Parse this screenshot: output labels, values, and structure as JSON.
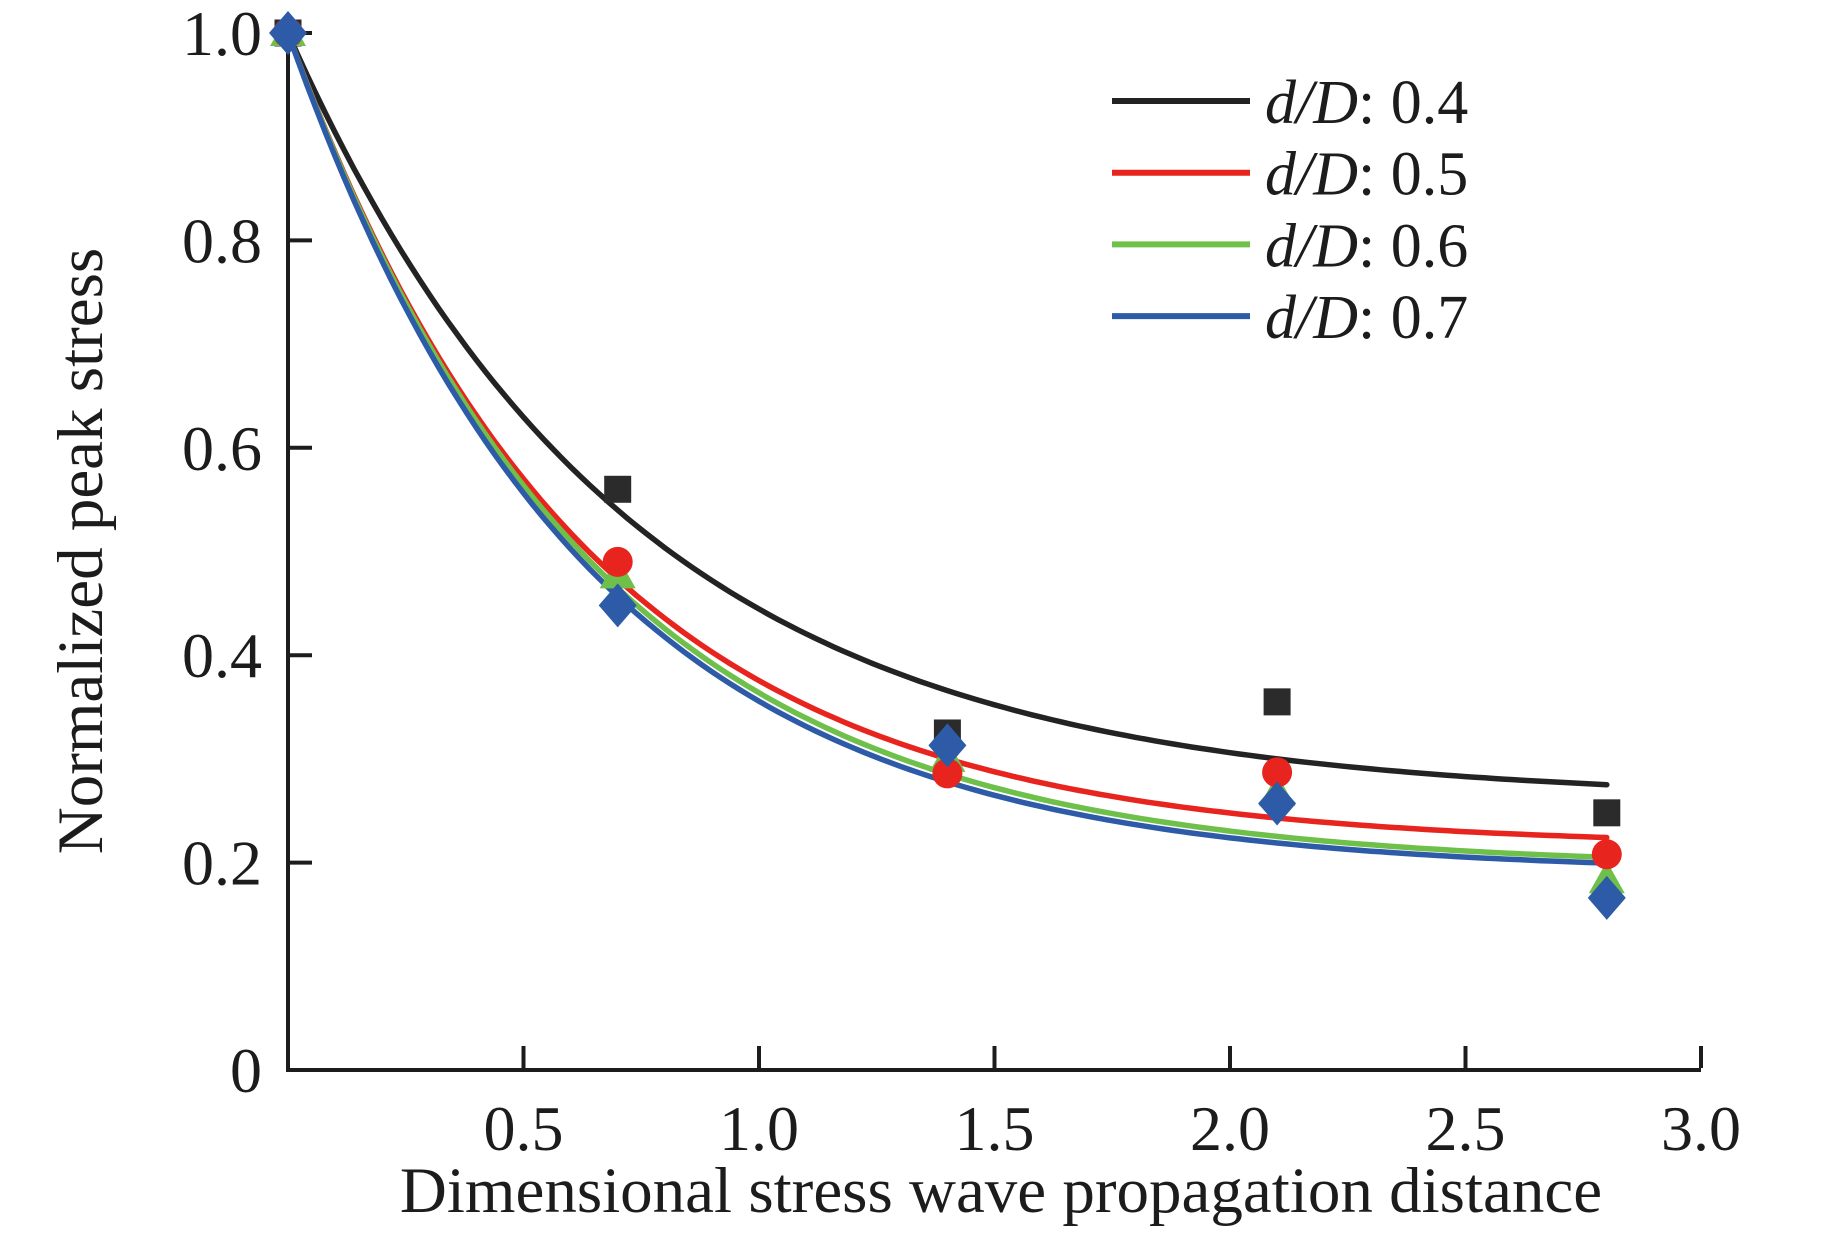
{
  "figure": {
    "background_color": "#ffffff",
    "axis_color": "#1c1c1c"
  },
  "chart_data": {
    "type": "scatter",
    "title": "",
    "xlabel": "Dimensional stress wave propagation distance",
    "ylabel": "Normalized peak stress",
    "xlim": [
      0,
      3.0
    ],
    "ylim": [
      0,
      1.0
    ],
    "grid": false,
    "legend_position": "top-right",
    "x_tick_values": [
      0.5,
      1.0,
      1.5,
      2.0,
      2.5,
      3.0
    ],
    "x_tick_labels": [
      "0.5",
      "1.0",
      "1.5",
      "2.0",
      "2.5",
      "3.0"
    ],
    "y_tick_values": [
      0,
      0.2,
      0.4,
      0.6,
      0.8,
      1.0
    ],
    "y_tick_labels": [
      "0",
      "0.2",
      "0.4",
      "0.6",
      "0.8",
      "1.0"
    ],
    "x": [
      0,
      0.7,
      1.4,
      2.1,
      2.8
    ],
    "series": [
      {
        "name": "d/D: 0.4",
        "legend_italic": "d/D",
        "legend_suffix": ": 0.4",
        "color": "#232323",
        "marker": "square",
        "values": [
          1.0,
          0.56,
          0.325,
          0.355,
          0.248
        ],
        "fit_curve": {
          "type": "exponential",
          "y0": 0.26,
          "amplitude": 0.74,
          "decay": 0.72,
          "x_start": 0,
          "x_end": 2.81
        }
      },
      {
        "name": "d/D: 0.5",
        "legend_italic": "d/D",
        "legend_suffix": ": 0.5",
        "color": "#e8241f",
        "marker": "circle",
        "values": [
          1.0,
          0.49,
          0.286,
          0.287,
          0.208
        ],
        "fit_curve": {
          "type": "exponential",
          "y0": 0.215,
          "amplitude": 0.785,
          "decay": 0.63,
          "x_start": 0,
          "x_end": 2.81
        }
      },
      {
        "name": "d/D: 0.6",
        "legend_italic": "d/D",
        "legend_suffix": ": 0.6",
        "color": "#6fc04a",
        "marker": "triangle",
        "values": [
          1.0,
          0.477,
          0.3,
          0.267,
          0.183
        ],
        "fit_curve": {
          "type": "exponential",
          "y0": 0.195,
          "amplitude": 0.805,
          "decay": 0.64,
          "x_start": 0,
          "x_end": 2.81
        }
      },
      {
        "name": "d/D: 0.7",
        "legend_italic": "d/D",
        "legend_suffix": ": 0.7",
        "color": "#2e5ba8",
        "marker": "diamond",
        "values": [
          1.0,
          0.448,
          0.313,
          0.257,
          0.166
        ],
        "fit_curve": {
          "type": "exponential",
          "y0": 0.19,
          "amplitude": 0.81,
          "decay": 0.63,
          "x_start": 0,
          "x_end": 2.81
        }
      }
    ]
  }
}
